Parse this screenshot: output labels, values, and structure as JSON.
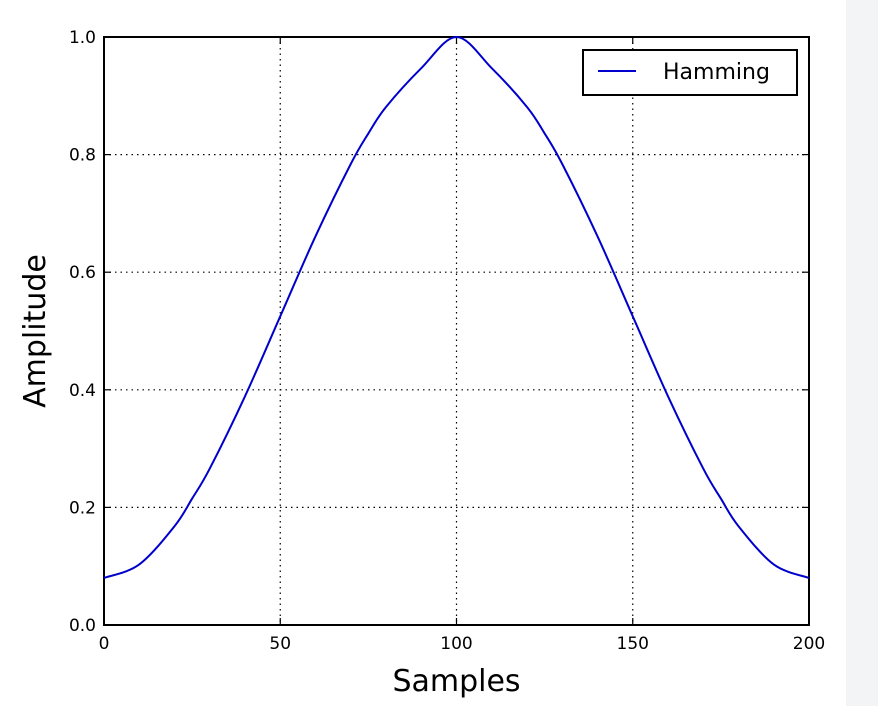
{
  "chart_data": {
    "type": "line",
    "title": "",
    "xlabel": "Samples",
    "ylabel": "Amplitude",
    "xlim": [
      0,
      200
    ],
    "ylim": [
      0.0,
      1.0
    ],
    "x_ticks": [
      "0",
      "50",
      "100",
      "150",
      "200"
    ],
    "y_ticks": [
      "0.0",
      "0.2",
      "0.4",
      "0.6",
      "0.8",
      "1.0"
    ],
    "grid": true,
    "legend_position": "top-right",
    "series": [
      {
        "name": "Hamming",
        "color": "#0000cc",
        "x": [
          0,
          10,
          20,
          25,
          30,
          40,
          50,
          60,
          70,
          75,
          80,
          90,
          100,
          110,
          120,
          125,
          130,
          140,
          150,
          160,
          170,
          175,
          180,
          190,
          200
        ],
        "values": [
          0.08,
          0.103,
          0.168,
          0.215,
          0.266,
          0.389,
          0.525,
          0.661,
          0.784,
          0.836,
          0.881,
          0.947,
          1.0,
          0.947,
          0.881,
          0.836,
          0.784,
          0.661,
          0.525,
          0.389,
          0.266,
          0.215,
          0.168,
          0.103,
          0.08
        ]
      }
    ]
  }
}
